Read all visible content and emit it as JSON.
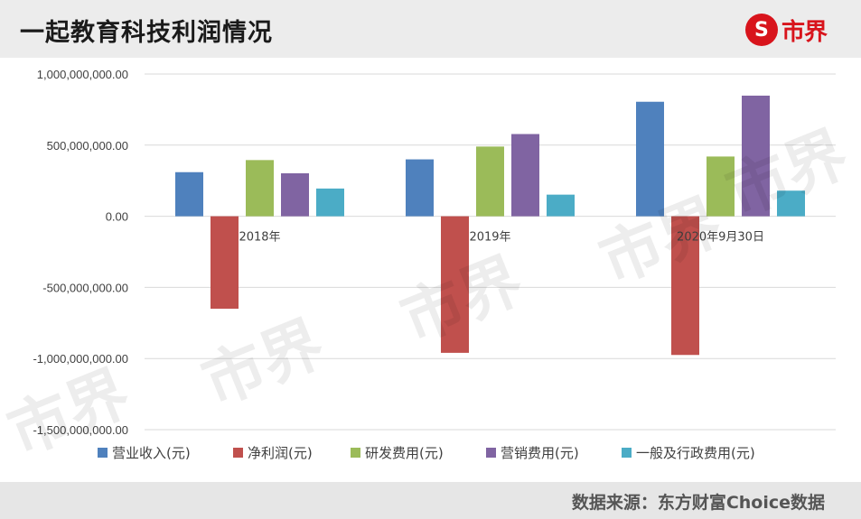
{
  "header": {
    "title": "一起教育科技利润情况",
    "logo_glyph": "S",
    "logo_text": "市界",
    "logo_color": "#d8141c"
  },
  "footer": {
    "source": "数据来源：东方财富Choice数据"
  },
  "watermark": "市界",
  "chart_data": {
    "type": "bar",
    "categories": [
      "2018年",
      "2019年",
      "2020年9月30日"
    ],
    "series": [
      {
        "name": "营业收入(元)",
        "color": "#4f81bd",
        "values": [
          310000000,
          400000000,
          805000000
        ]
      },
      {
        "name": "净利润(元)",
        "color": "#c0504d",
        "values": [
          -650000000,
          -960000000,
          -975000000
        ]
      },
      {
        "name": "研发费用(元)",
        "color": "#9bbb59",
        "values": [
          395000000,
          490000000,
          420000000
        ]
      },
      {
        "name": "营销费用(元)",
        "color": "#8064a2",
        "values": [
          302000000,
          578000000,
          848000000
        ]
      },
      {
        "name": "一般及行政费用(元)",
        "color": "#4bacc6",
        "values": [
          195000000,
          152000000,
          180000000
        ]
      }
    ],
    "yticks": [
      "1,000,000,000.00",
      "500,000,000.00",
      "0.00",
      "-500,000,000.00",
      "-1,000,000,000.00",
      "-1,500,000,000.00"
    ],
    "ylim": [
      -1500000000,
      1000000000
    ],
    "grid": true,
    "legend_position": "bottom"
  }
}
